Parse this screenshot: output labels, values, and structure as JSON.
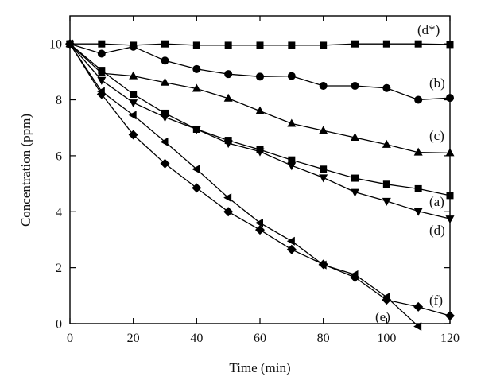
{
  "chart_data": {
    "type": "line",
    "xlabel": "Time (min)",
    "ylabel": "Concentration (ppm)",
    "xlim": [
      0,
      120
    ],
    "ylim": [
      0,
      11
    ],
    "xticks": [
      0,
      20,
      40,
      60,
      80,
      100,
      120
    ],
    "yticks": [
      0,
      2,
      4,
      6,
      8,
      10
    ],
    "grid": false,
    "series": [
      {
        "label": "(d*)",
        "marker": "square",
        "x": [
          0,
          10,
          20,
          30,
          40,
          50,
          60,
          70,
          80,
          90,
          100,
          110,
          120
        ],
        "y": [
          10.0,
          10.0,
          9.95,
          10.0,
          9.95,
          9.95,
          9.95,
          9.95,
          9.95,
          10.0,
          10.0,
          10.0,
          9.98
        ]
      },
      {
        "label": "(b)",
        "marker": "circle",
        "x": [
          0,
          10,
          20,
          30,
          40,
          50,
          60,
          70,
          80,
          90,
          100,
          110,
          120
        ],
        "y": [
          10.0,
          9.65,
          9.9,
          9.4,
          9.1,
          8.92,
          8.83,
          8.85,
          8.5,
          8.5,
          8.42,
          8.0,
          8.07
        ]
      },
      {
        "label": "(c)",
        "marker": "triangle-up",
        "x": [
          0,
          10,
          20,
          30,
          40,
          50,
          60,
          70,
          80,
          90,
          100,
          110,
          120
        ],
        "y": [
          10.0,
          8.95,
          8.85,
          8.62,
          8.4,
          8.05,
          7.6,
          7.15,
          6.9,
          6.65,
          6.4,
          6.12,
          6.1
        ]
      },
      {
        "label": "(a)",
        "marker": "square",
        "x": [
          0,
          10,
          20,
          30,
          40,
          50,
          60,
          70,
          80,
          90,
          100,
          110,
          120
        ],
        "y": [
          10.0,
          9.05,
          8.2,
          7.52,
          6.95,
          6.55,
          6.22,
          5.85,
          5.52,
          5.2,
          4.98,
          4.82,
          4.58
        ]
      },
      {
        "label": "(d)",
        "marker": "triangle-down",
        "x": [
          0,
          10,
          20,
          30,
          40,
          50,
          60,
          70,
          80,
          90,
          100,
          110,
          120
        ],
        "y": [
          10.0,
          8.7,
          7.9,
          7.38,
          6.95,
          6.45,
          6.15,
          5.65,
          5.22,
          4.7,
          4.38,
          4.02,
          3.75
        ]
      },
      {
        "label": "(e)",
        "marker": "triangle-left",
        "x": [
          0,
          10,
          20,
          30,
          40,
          50,
          60,
          70,
          80,
          90,
          100,
          110
        ],
        "y": [
          10.0,
          8.3,
          7.45,
          6.5,
          5.52,
          4.5,
          3.6,
          2.95,
          2.1,
          1.75,
          0.95,
          -0.1
        ]
      },
      {
        "label": "(f)",
        "marker": "diamond",
        "x": [
          0,
          10,
          20,
          30,
          40,
          50,
          60,
          70,
          80,
          90,
          100,
          110,
          120
        ],
        "y": [
          10.0,
          8.2,
          6.75,
          5.72,
          4.85,
          4.0,
          3.35,
          2.65,
          2.12,
          1.65,
          0.85,
          0.6,
          0.28
        ]
      }
    ]
  }
}
